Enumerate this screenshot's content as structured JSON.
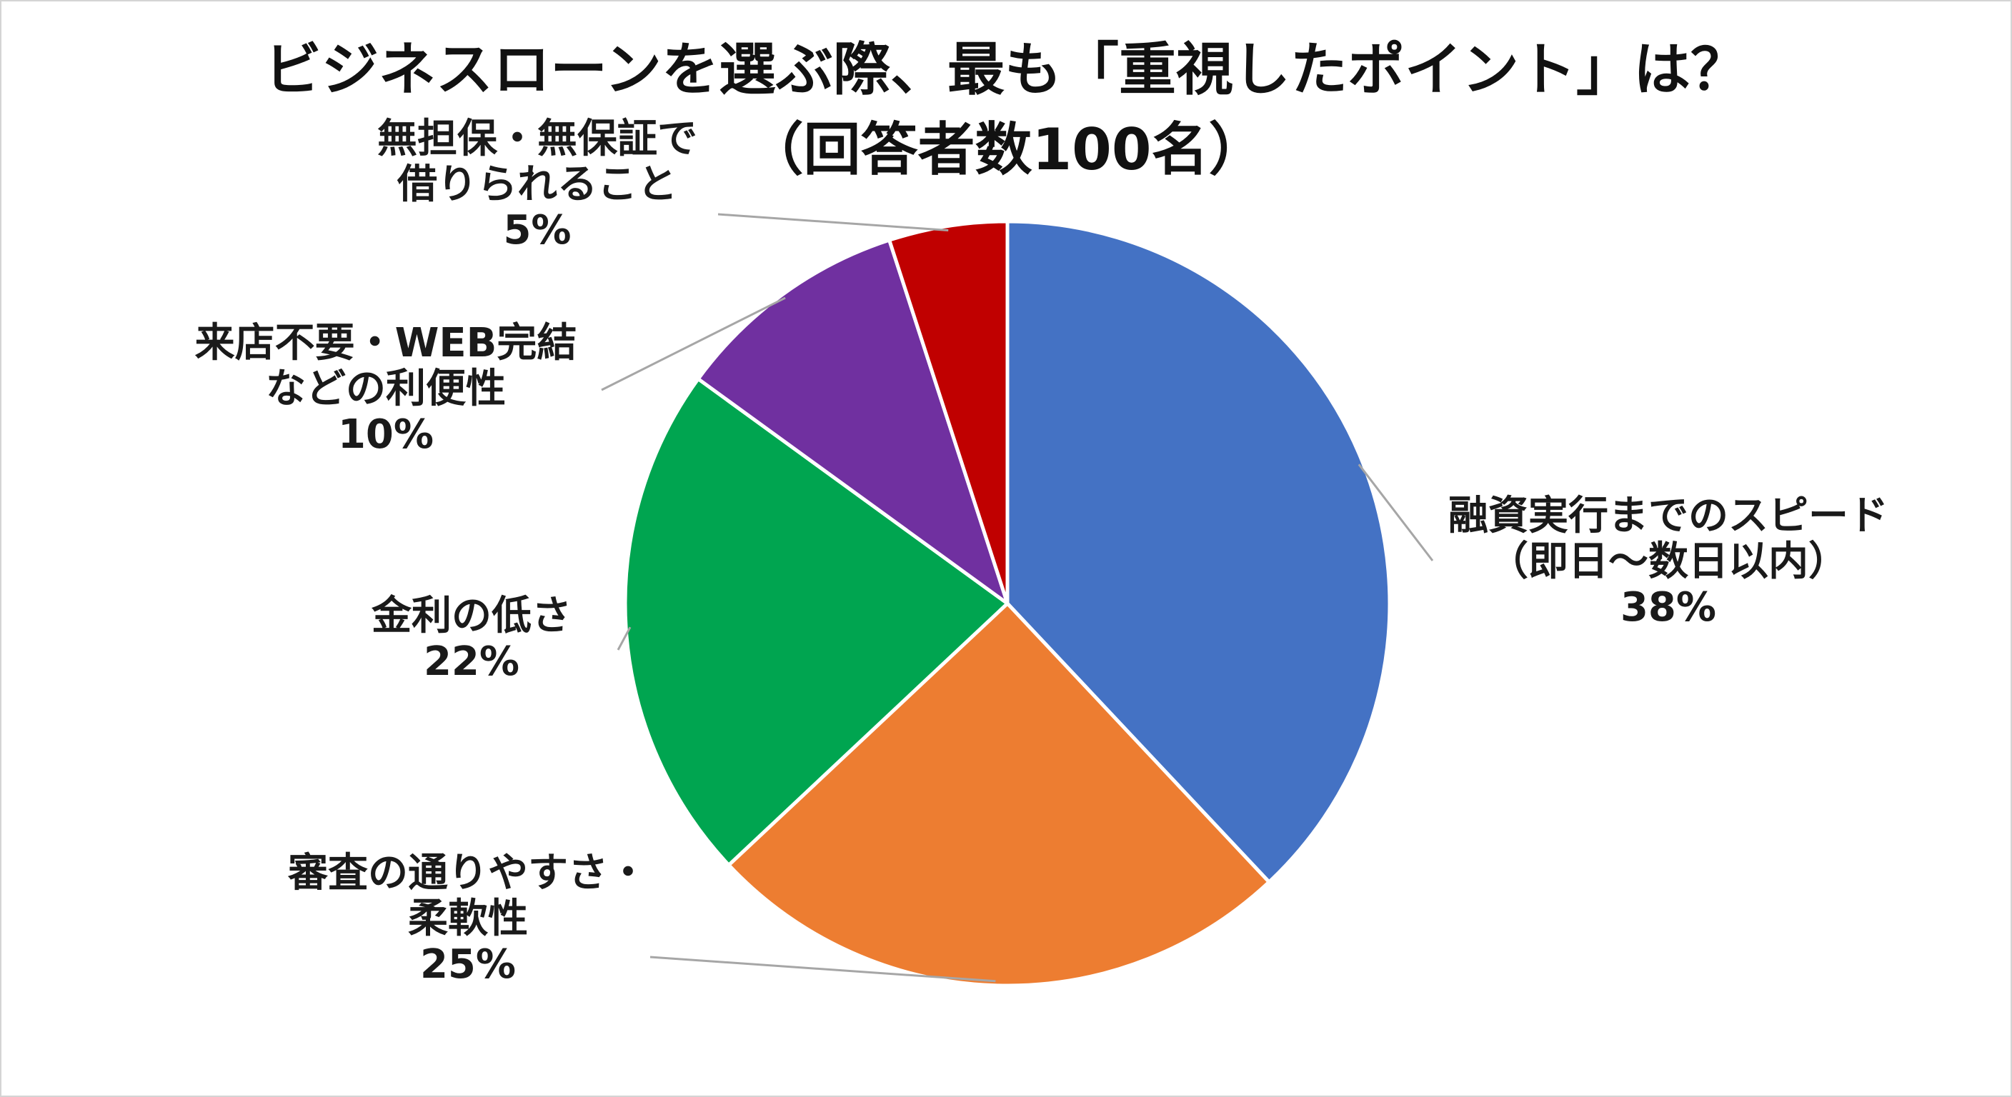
{
  "chart_data": {
    "type": "pie",
    "title": "ビジネスローンを選ぶ際、最も「重視したポイント」は？",
    "subtitle": "（回答者数100名）",
    "categories": [
      "融資実行までのスピード（即日～数日以内）",
      "審査の通りやすさ・柔軟性",
      "金利の低さ",
      "来店不要・WEB完結などの利便性",
      "無担保・無保証で借りられること"
    ],
    "values": [
      38,
      25,
      22,
      10,
      5
    ],
    "slices": [
      {
        "label_lines": [
          "融資実行までのスピード",
          "（即日～数日以内）"
        ],
        "value_text": "38%",
        "value": 38,
        "color": "#4472C4"
      },
      {
        "label_lines": [
          "審査の通りやすさ・",
          "柔軟性"
        ],
        "value_text": "25%",
        "value": 25,
        "color": "#ED7D31"
      },
      {
        "label_lines": [
          "金利の低さ"
        ],
        "value_text": "22%",
        "value": 22,
        "color": "#00A550"
      },
      {
        "label_lines": [
          "来店不要・WEB完結",
          "などの利便性"
        ],
        "value_text": "10%",
        "value": 10,
        "color": "#7030A0"
      },
      {
        "label_lines": [
          "無担保・無保証で",
          "借りられること"
        ],
        "value_text": "5%",
        "value": 5,
        "color": "#C00000"
      }
    ]
  }
}
